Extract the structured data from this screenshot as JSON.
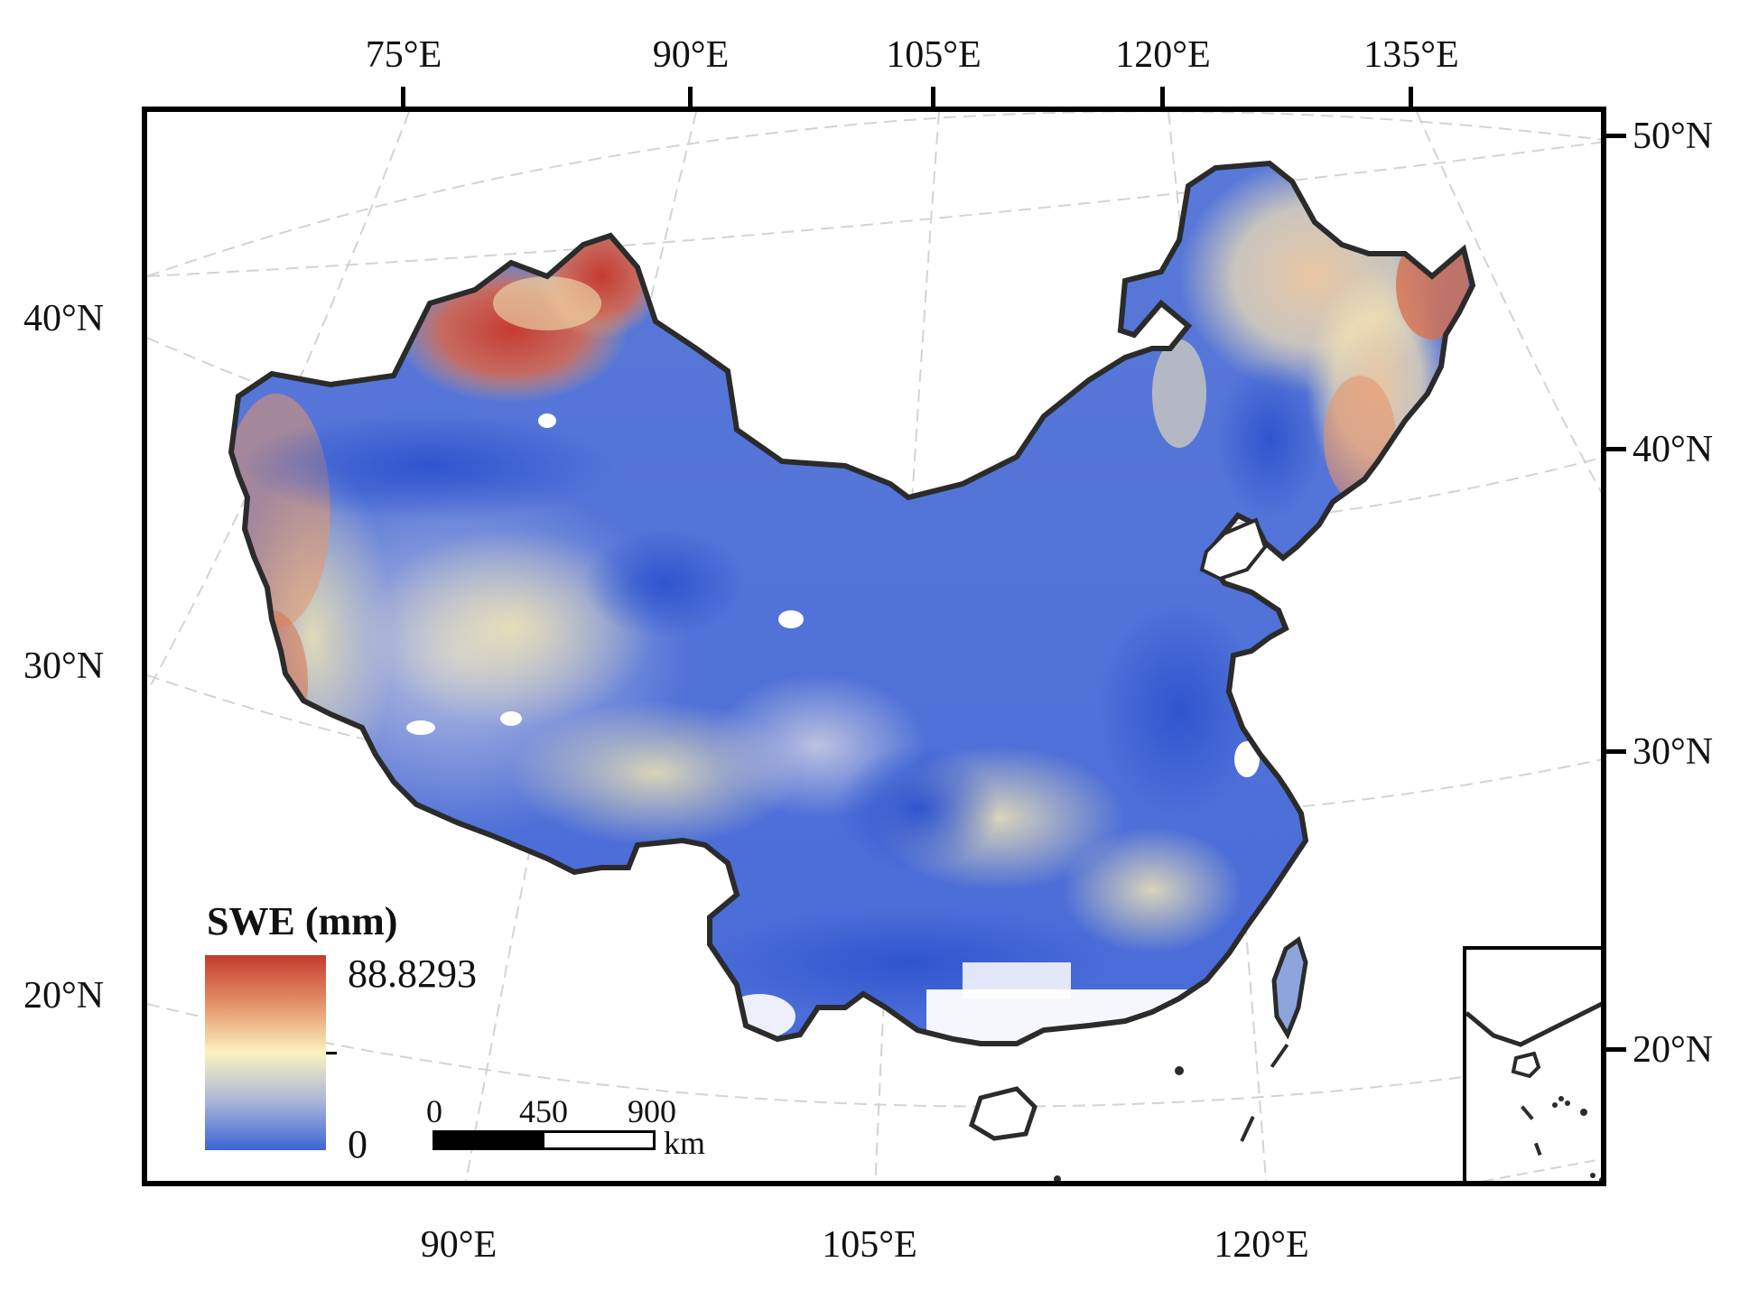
{
  "legend": {
    "title": "SWE (mm)",
    "max": "88.8293",
    "min": "0",
    "colors": [
      "#c53a2e",
      "#e6956a",
      "#fbf3bf",
      "#a9b6d8",
      "#3c63d6"
    ]
  },
  "scale_bar": {
    "labels": [
      "0",
      "450",
      "900"
    ],
    "unit": "km"
  },
  "axes": {
    "top_lon": [
      "75°E",
      "90°E",
      "105°E",
      "120°E",
      "135°E"
    ],
    "bottom_lon": [
      "90°E",
      "105°E",
      "120°E"
    ],
    "left_lat": [
      "40°N",
      "30°N",
      "20°N"
    ],
    "right_lat": [
      "50°N",
      "40°N",
      "30°N",
      "20°N"
    ]
  },
  "colors": {
    "frame": "#000000",
    "graticule": "#cfcfcf",
    "boundary": "#2b2b2b",
    "swe_low": "#3c63d6",
    "swe_mid": "#fbf3bf",
    "swe_high": "#c53a2e"
  }
}
